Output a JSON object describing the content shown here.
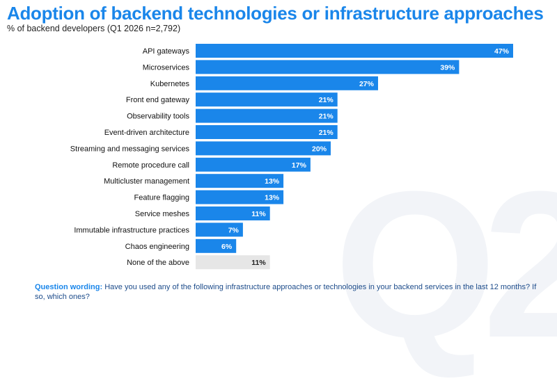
{
  "header": {
    "title": "Adoption of backend technologies or infrastructure approaches",
    "subtitle": "% of backend developers (Q1 2026 n=2,792)"
  },
  "watermark": {
    "text": "Q2"
  },
  "footer": {
    "question_label": "Question wording:",
    "question_text": "Have you used any of the following infrastructure approaches or technologies in your backend services in the last 12 months? If so, which ones?"
  },
  "colors": {
    "bar": "#1a86ea",
    "bar_neutral": "#e6e6e6",
    "title": "#1a86ea",
    "label_on_bar": "#ffffff",
    "label_on_neutral": "#222222"
  },
  "chart_data": {
    "type": "bar",
    "orientation": "horizontal",
    "title": "Adoption of backend technologies or infrastructure approaches",
    "subtitle": "% of backend developers (Q1 2026 n=2,792)",
    "value_suffix": "%",
    "xlim": [
      0,
      47
    ],
    "grid": false,
    "categories": [
      "API gateways",
      "Microservices",
      "Kubernetes",
      "Front end gateway",
      "Observability tools",
      "Event-driven architecture",
      "Streaming and messaging services",
      "Remote procedure call",
      "Multicluster management",
      "Feature flagging",
      "Service meshes",
      "Immutable infrastructure practices",
      "Chaos engineering",
      "None of the above"
    ],
    "values": [
      47,
      39,
      27,
      21,
      21,
      21,
      20,
      17,
      13,
      13,
      11,
      7,
      6,
      11
    ],
    "neutral_categories": [
      "None of the above"
    ]
  }
}
